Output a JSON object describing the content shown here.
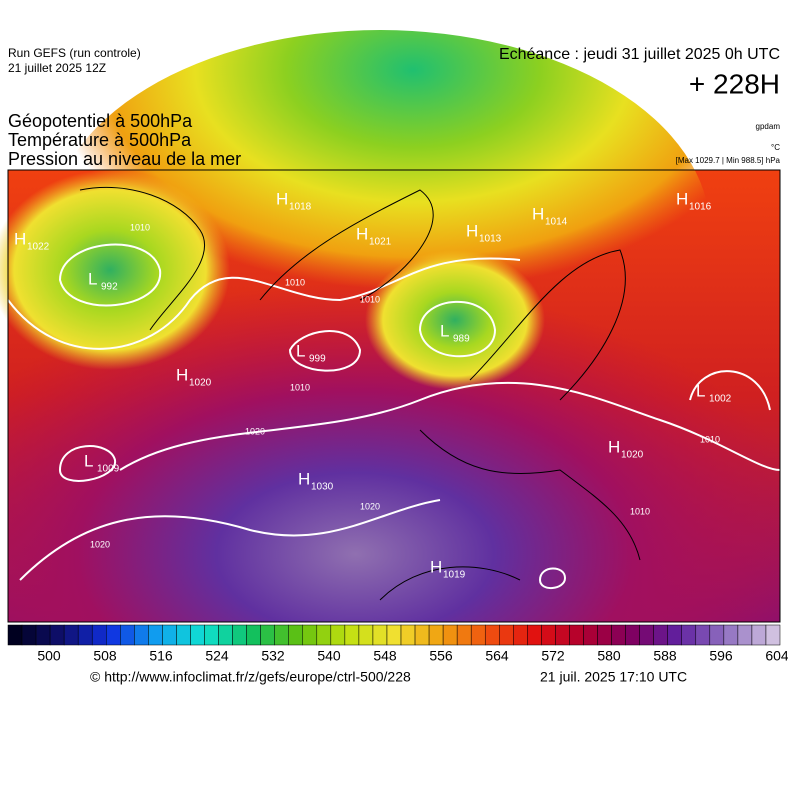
{
  "header": {
    "run": "Run GEFS (run controle)",
    "run_date": "21 juillet 2025 12Z",
    "valid": "Echéance : jeudi 31 juillet 2025 0h UTC",
    "lead": "+ 228H"
  },
  "titles": [
    "Géopotentiel à 500hPa",
    "Température à 500hPa",
    "Pression au niveau de la mer"
  ],
  "units": {
    "geopotential": "gpdam",
    "temperature": "°C",
    "pressure": "[Max 1029.7 | Min 988.5] hPa"
  },
  "centers": [
    {
      "type": "H",
      "value": 1022
    },
    {
      "type": "L",
      "value": 992
    },
    {
      "type": "H",
      "value": 1018
    },
    {
      "type": "H",
      "value": 1021
    },
    {
      "type": "H",
      "value": 1013
    },
    {
      "type": "H",
      "value": 1014
    },
    {
      "type": "H",
      "value": 1016
    },
    {
      "type": "L",
      "value": 989
    },
    {
      "type": "L",
      "value": 999
    },
    {
      "type": "H",
      "value": 1020
    },
    {
      "type": "L",
      "value": 1002
    },
    {
      "type": "H",
      "value": 1020
    },
    {
      "type": "L",
      "value": 1009
    },
    {
      "type": "H",
      "value": 1030
    },
    {
      "type": "H",
      "value": 1019
    }
  ],
  "isobar_labels": [
    1010,
    1010,
    1010,
    1010,
    1020,
    1020,
    1020,
    1010,
    1010
  ],
  "colorbar": {
    "ticks": [
      500,
      508,
      516,
      524,
      532,
      540,
      548,
      556,
      564,
      572,
      580,
      588,
      596,
      604
    ]
  },
  "footer": {
    "source": "© http://www.infoclimat.fr/z/gefs/europe/ctrl-500/228",
    "generated": "21 juil. 2025 17:10 UTC"
  }
}
